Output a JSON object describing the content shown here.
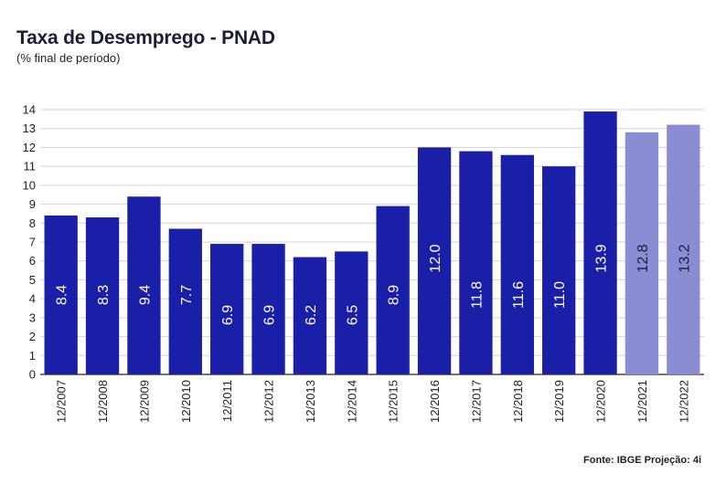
{
  "title": "Taxa de Desemprego - PNAD",
  "subtitle": "(% final de período)",
  "source": "Fonte: IBGE Projeção: 4i",
  "colors": {
    "actual": "#1a1fa8",
    "projection": "#8a8dd4",
    "grid": "#d4d4d4",
    "axis": "#222222"
  },
  "chart_data": {
    "type": "bar",
    "title": "Taxa de Desemprego - PNAD",
    "subtitle": "(% final de período)",
    "categories": [
      "12/2007",
      "12/2008",
      "12/2009",
      "12/2010",
      "12/2011",
      "12/2012",
      "12/2013",
      "12/2014",
      "12/2015",
      "12/2016",
      "12/2017",
      "12/2018",
      "12/2019",
      "12/2020",
      "12/2021",
      "12/2022"
    ],
    "values": [
      8.4,
      8.3,
      9.4,
      7.7,
      6.9,
      6.9,
      6.2,
      6.5,
      8.9,
      12.0,
      11.8,
      11.6,
      11.0,
      13.9,
      12.8,
      13.2
    ],
    "labels": [
      "8.4",
      "8.3",
      "9.4",
      "7.7",
      "6.9",
      "6.9",
      "6.2",
      "6.5",
      "8.9",
      "12.0",
      "11.8",
      "11.6",
      "11.0",
      "13.9",
      "12.8",
      "13.2"
    ],
    "projection": [
      false,
      false,
      false,
      false,
      false,
      false,
      false,
      false,
      false,
      false,
      false,
      false,
      false,
      false,
      true,
      true
    ],
    "ylim": [
      0,
      14
    ],
    "yticks": [
      0,
      1,
      2,
      3,
      4,
      5,
      6,
      7,
      8,
      9,
      10,
      11,
      12,
      13,
      14
    ],
    "grid": true,
    "xlabel": "",
    "ylabel": ""
  }
}
